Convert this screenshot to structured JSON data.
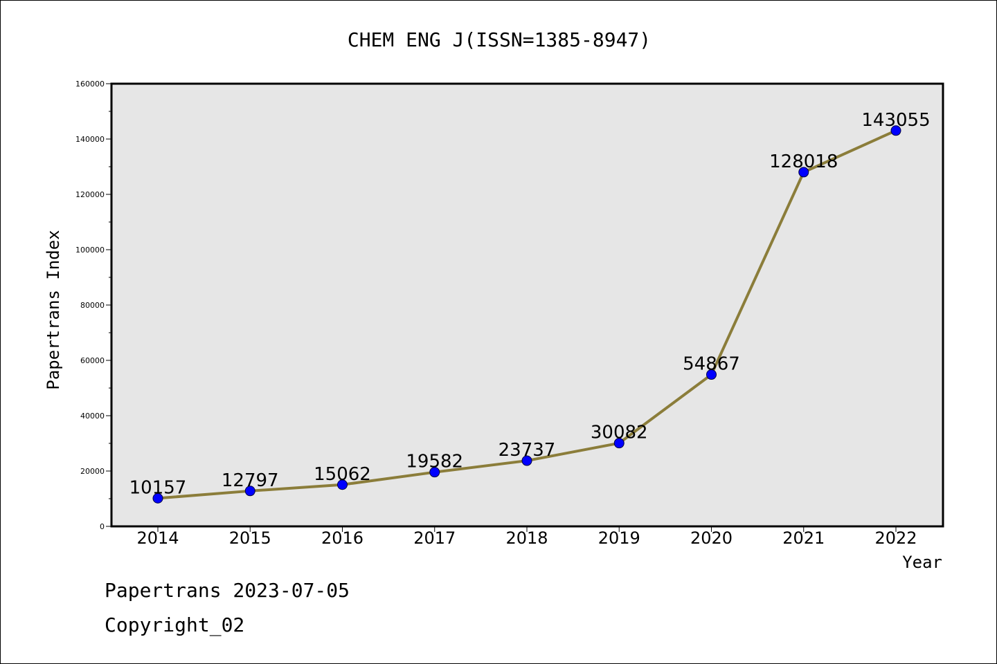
{
  "chart_data": {
    "type": "line",
    "title": "CHEM ENG J(ISSN=1385-8947)",
    "xlabel": "Year",
    "ylabel": "Papertrans Index",
    "categories": [
      "2014",
      "2015",
      "2016",
      "2017",
      "2018",
      "2019",
      "2020",
      "2021",
      "2022"
    ],
    "values": [
      10157,
      12797,
      15062,
      19582,
      23737,
      30082,
      54867,
      128018,
      143055
    ],
    "data_labels": [
      "10157",
      "12797",
      "15062",
      "19582",
      "23737",
      "30082",
      "54867",
      "128018",
      "143055"
    ],
    "ylim": [
      0,
      160000
    ],
    "y_ticks": [
      0,
      20000,
      40000,
      60000,
      80000,
      100000,
      120000,
      140000,
      160000
    ],
    "y_tick_labels": [
      "0",
      "20000",
      "40000",
      "60000",
      "80000",
      "100000",
      "120000",
      "140000",
      "160000"
    ],
    "grid": false,
    "legend": "none",
    "colors": {
      "line": "#8b7d3a",
      "marker": "#0000ff",
      "plot_background": "#e6e6e6"
    }
  },
  "footer": {
    "line1": "Papertrans 2023-07-05",
    "line2": "Copyright_02"
  }
}
